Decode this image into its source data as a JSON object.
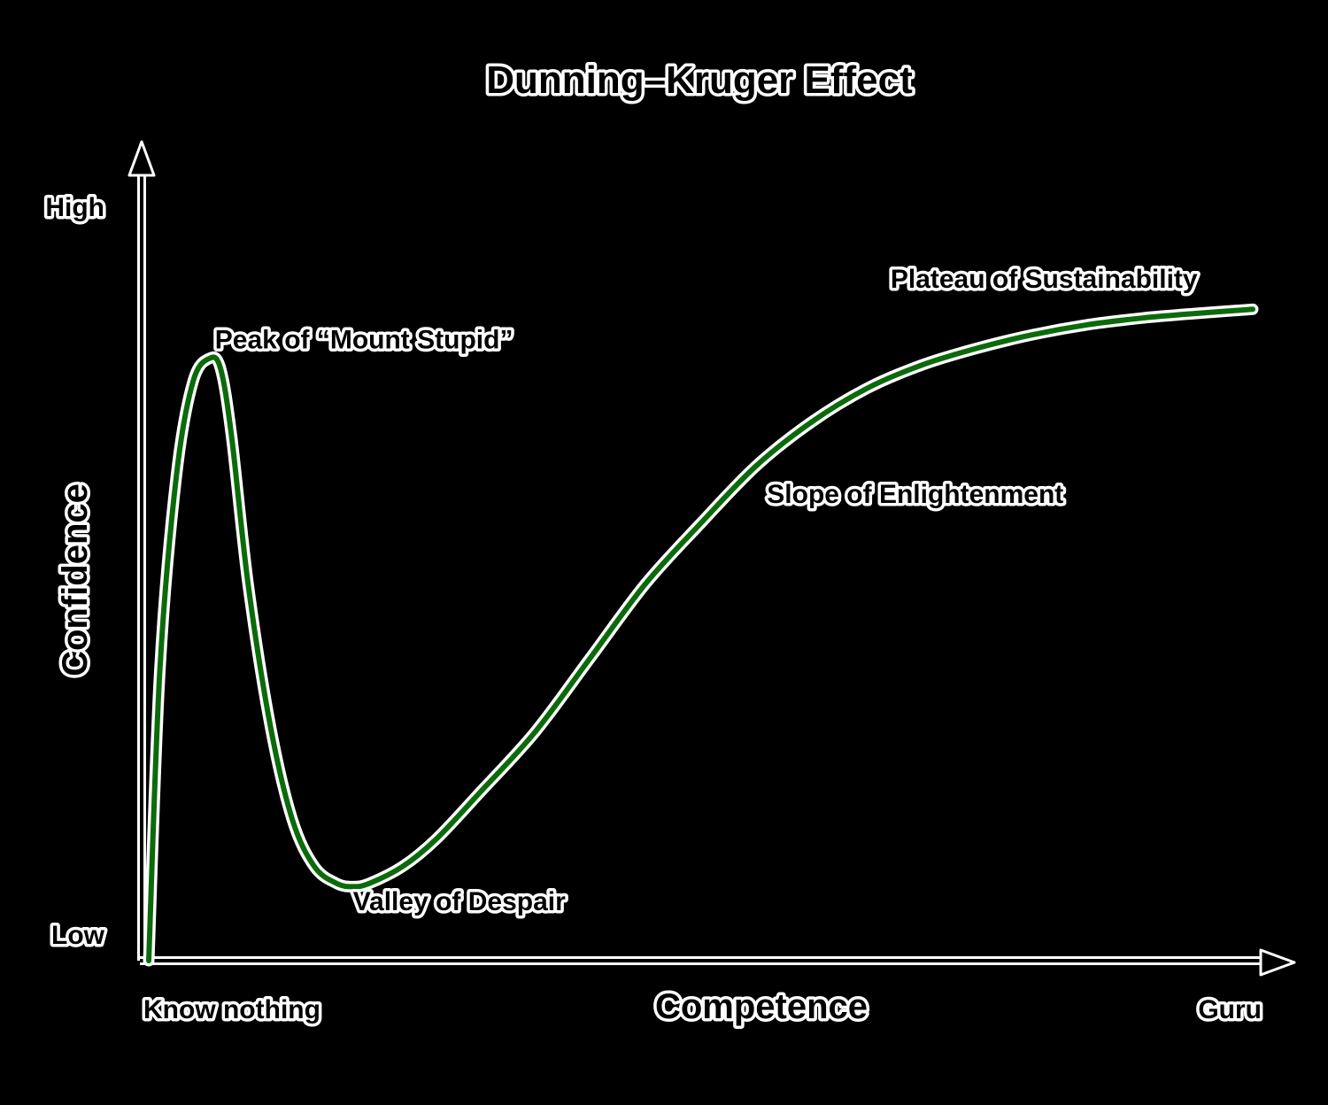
{
  "chart_data": {
    "type": "line",
    "title": "Dunning–Kruger Effect",
    "xlabel": "Competence",
    "ylabel": "Confidence",
    "x_tick_labels": [
      "Know nothing",
      "Guru"
    ],
    "y_tick_labels": [
      "Low",
      "High"
    ],
    "xlim": [
      0,
      1
    ],
    "ylim": [
      0,
      1
    ],
    "grid": false,
    "series": [
      {
        "color": "#0b6b0b",
        "x": [
          0.0,
          0.01,
          0.025,
          0.04,
          0.055,
          0.065,
          0.075,
          0.09,
          0.11,
          0.13,
          0.15,
          0.17,
          0.185,
          0.2,
          0.23,
          0.26,
          0.3,
          0.35,
          0.4,
          0.45,
          0.5,
          0.55,
          0.6,
          0.65,
          0.7,
          0.75,
          0.8,
          0.85,
          0.9,
          0.95,
          1.0
        ],
        "y": [
          0.0,
          0.43,
          0.72,
          0.86,
          0.895,
          0.88,
          0.78,
          0.56,
          0.35,
          0.21,
          0.14,
          0.115,
          0.11,
          0.115,
          0.14,
          0.18,
          0.25,
          0.34,
          0.45,
          0.56,
          0.65,
          0.735,
          0.8,
          0.85,
          0.885,
          0.91,
          0.93,
          0.945,
          0.955,
          0.962,
          0.968
        ]
      }
    ],
    "annotations": [
      {
        "text": "Peak of “Mount Stupid”",
        "x": 0.06,
        "y": 0.91
      },
      {
        "text": "Valley of Despair",
        "x": 0.185,
        "y": 0.075
      },
      {
        "text": "Slope of Enlightenment",
        "x": 0.56,
        "y": 0.68
      },
      {
        "text": "Plateau of Sustainability",
        "x": 0.95,
        "y": 1.0
      }
    ],
    "annotation_keys": [
      "peak",
      "valley",
      "slope",
      "plateau"
    ]
  }
}
